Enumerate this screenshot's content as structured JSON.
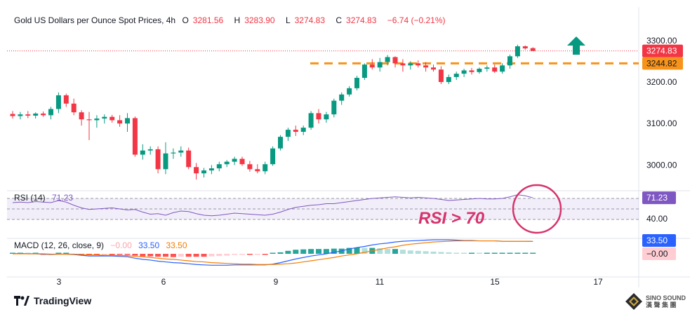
{
  "header": {
    "title": "Gold US Dollars per Ounce Spot Prices, 4h",
    "o_label": "O",
    "o_value": "3281.56",
    "h_label": "H",
    "h_value": "3283.90",
    "l_label": "L",
    "l_value": "3274.83",
    "c_label": "C",
    "c_value": "3274.83",
    "change": "−6.74 (−0.21%)"
  },
  "rsi": {
    "legend": "RSI (14)",
    "value": "71.23",
    "axis_label": "40.00",
    "badge": "71.23",
    "annotation": "RSI > 70"
  },
  "macd": {
    "legend": "MACD (12, 26, close, 9)",
    "hist": "−0.00",
    "macd_value": "33.50",
    "signal_value": "33.50",
    "badge_macd": "33.50",
    "badge_hist": "−0.00"
  },
  "price_axis": {
    "ticks": [
      "3300.00",
      "3200.00",
      "3100.00",
      "3000.00"
    ],
    "last_price": "3274.83",
    "level_price": "3244.82"
  },
  "time_axis": [
    "3",
    "6",
    "9",
    "11",
    "15",
    "17"
  ],
  "branding": {
    "tv": "TradingView",
    "wm_line1": "SINO SOUND",
    "wm_line2": "漢 聲 集 團"
  },
  "colors": {
    "up": "#089981",
    "down": "#f23645",
    "rsi": "#7e57c2",
    "macd": "#2962ff",
    "signal": "#f57c00",
    "level": "#f7931a",
    "annotation": "#d6336c"
  },
  "chart_data": {
    "type": "candlestick",
    "title": "Gold US Dollars per Ounce Spot Prices, 4h",
    "ylim": [
      2950,
      3330
    ],
    "x_ticks": [
      "3",
      "6",
      "9",
      "11",
      "15",
      "17"
    ],
    "resistance_level": 3244.82,
    "last_price": 3274.83,
    "candles": [
      [
        3123,
        3130,
        3112,
        3118
      ],
      [
        3118,
        3128,
        3110,
        3122
      ],
      [
        3122,
        3130,
        3113,
        3119
      ],
      [
        3119,
        3127,
        3112,
        3124
      ],
      [
        3124,
        3129,
        3116,
        3120
      ],
      [
        3120,
        3140,
        3110,
        3135
      ],
      [
        3135,
        3175,
        3125,
        3168
      ],
      [
        3168,
        3172,
        3140,
        3148
      ],
      [
        3148,
        3160,
        3120,
        3127
      ],
      [
        3127,
        3132,
        3095,
        3110
      ],
      [
        3110,
        3128,
        3060,
        3108
      ],
      [
        3108,
        3120,
        3090,
        3112
      ],
      [
        3112,
        3122,
        3100,
        3116
      ],
      [
        3116,
        3121,
        3102,
        3108
      ],
      [
        3108,
        3120,
        3092,
        3100
      ],
      [
        3100,
        3125,
        3080,
        3113
      ],
      [
        3113,
        3117,
        3020,
        3025
      ],
      [
        3025,
        3050,
        3013,
        3035
      ],
      [
        3035,
        3045,
        3025,
        3038
      ],
      [
        3038,
        3045,
        2980,
        2990
      ],
      [
        2990,
        3055,
        2978,
        3028
      ],
      [
        3028,
        3040,
        3015,
        3030
      ],
      [
        3030,
        3045,
        3020,
        3035
      ],
      [
        3035,
        3042,
        2990,
        2995
      ],
      [
        2995,
        3005,
        2965,
        2980
      ],
      [
        2980,
        2993,
        2970,
        2987
      ],
      [
        2987,
        3000,
        2978,
        2992
      ],
      [
        2992,
        3008,
        2985,
        3002
      ],
      [
        3002,
        3012,
        2995,
        3008
      ],
      [
        3008,
        3020,
        3000,
        3015
      ],
      [
        3015,
        3020,
        2998,
        3002
      ],
      [
        3002,
        3010,
        2984,
        2990
      ],
      [
        2990,
        3002,
        2980,
        2985
      ],
      [
        2985,
        3008,
        2978,
        3002
      ],
      [
        3002,
        3045,
        2998,
        3040
      ],
      [
        3040,
        3072,
        3035,
        3068
      ],
      [
        3068,
        3090,
        3058,
        3085
      ],
      [
        3085,
        3095,
        3070,
        3080
      ],
      [
        3080,
        3095,
        3072,
        3090
      ],
      [
        3090,
        3130,
        3085,
        3125
      ],
      [
        3125,
        3135,
        3100,
        3110
      ],
      [
        3110,
        3128,
        3102,
        3122
      ],
      [
        3122,
        3160,
        3115,
        3155
      ],
      [
        3155,
        3175,
        3145,
        3170
      ],
      [
        3170,
        3190,
        3165,
        3185
      ],
      [
        3185,
        3215,
        3180,
        3210
      ],
      [
        3210,
        3245,
        3205,
        3242
      ],
      [
        3242,
        3255,
        3230,
        3235
      ],
      [
        3235,
        3258,
        3225,
        3248
      ],
      [
        3248,
        3265,
        3240,
        3260
      ],
      [
        3260,
        3262,
        3235,
        3245
      ],
      [
        3245,
        3255,
        3225,
        3240
      ],
      [
        3240,
        3250,
        3230,
        3245
      ],
      [
        3245,
        3252,
        3235,
        3240
      ],
      [
        3240,
        3248,
        3225,
        3235
      ],
      [
        3235,
        3242,
        3225,
        3230
      ],
      [
        3230,
        3238,
        3195,
        3200
      ],
      [
        3200,
        3218,
        3195,
        3212
      ],
      [
        3212,
        3225,
        3205,
        3220
      ],
      [
        3220,
        3232,
        3212,
        3228
      ],
      [
        3228,
        3234,
        3218,
        3224
      ],
      [
        3224,
        3235,
        3220,
        3232
      ],
      [
        3232,
        3240,
        3225,
        3235
      ],
      [
        3235,
        3242,
        3222,
        3225
      ],
      [
        3225,
        3245,
        3220,
        3240
      ],
      [
        3240,
        3266,
        3232,
        3262
      ],
      [
        3262,
        3290,
        3258,
        3286
      ],
      [
        3286,
        3288,
        3278,
        3281
      ],
      [
        3281.56,
        3283.9,
        3274.83,
        3274.83
      ]
    ],
    "rsi_series": [
      62,
      63,
      62,
      64,
      63,
      62,
      66,
      63,
      57,
      52,
      49,
      50,
      51,
      52,
      50,
      48,
      49,
      44,
      40,
      41,
      38,
      43,
      46,
      45,
      41,
      38,
      37,
      38,
      40,
      42,
      41,
      40,
      39,
      38,
      40,
      44,
      49,
      53,
      55,
      57,
      58,
      60,
      60,
      62,
      64,
      66,
      68,
      70,
      71,
      72,
      73,
      72,
      71,
      72,
      71,
      70,
      68,
      66,
      67,
      68,
      69,
      70,
      69,
      69,
      70,
      73,
      77,
      75,
      71.23
    ],
    "macd_series": [
      0,
      1,
      0,
      0,
      -1,
      -2,
      -1,
      -1,
      -2,
      -4,
      -6,
      -6,
      -6,
      -6,
      -7,
      -8,
      -12,
      -15,
      -17,
      -20,
      -22,
      -24,
      -25,
      -27,
      -29,
      -30,
      -31,
      -31,
      -31,
      -30,
      -30,
      -30,
      -30,
      -30,
      -28,
      -24,
      -19,
      -14,
      -10,
      -6,
      -3,
      0,
      4,
      8,
      13,
      17,
      20,
      24,
      27,
      29,
      32,
      34,
      35,
      36,
      37,
      38,
      38,
      38,
      37,
      36,
      36,
      35,
      35,
      35,
      34,
      34,
      34,
      34,
      33.5
    ],
    "signal_series": [
      0,
      0,
      0,
      0,
      0,
      -1,
      -1,
      -1,
      -1,
      -2,
      -3,
      -3,
      -4,
      -4,
      -5,
      -5,
      -7,
      -8,
      -10,
      -12,
      -14,
      -15,
      -17,
      -19,
      -21,
      -22,
      -24,
      -25,
      -26,
      -27,
      -28,
      -28,
      -29,
      -29,
      -29,
      -28,
      -27,
      -25,
      -22,
      -19,
      -16,
      -13,
      -10,
      -6,
      -3,
      0,
      4,
      8,
      12,
      16,
      19,
      23,
      26,
      28,
      30,
      32,
      33,
      34,
      35,
      35,
      35,
      35,
      35,
      35,
      34,
      34,
      34,
      34,
      33.5
    ]
  }
}
